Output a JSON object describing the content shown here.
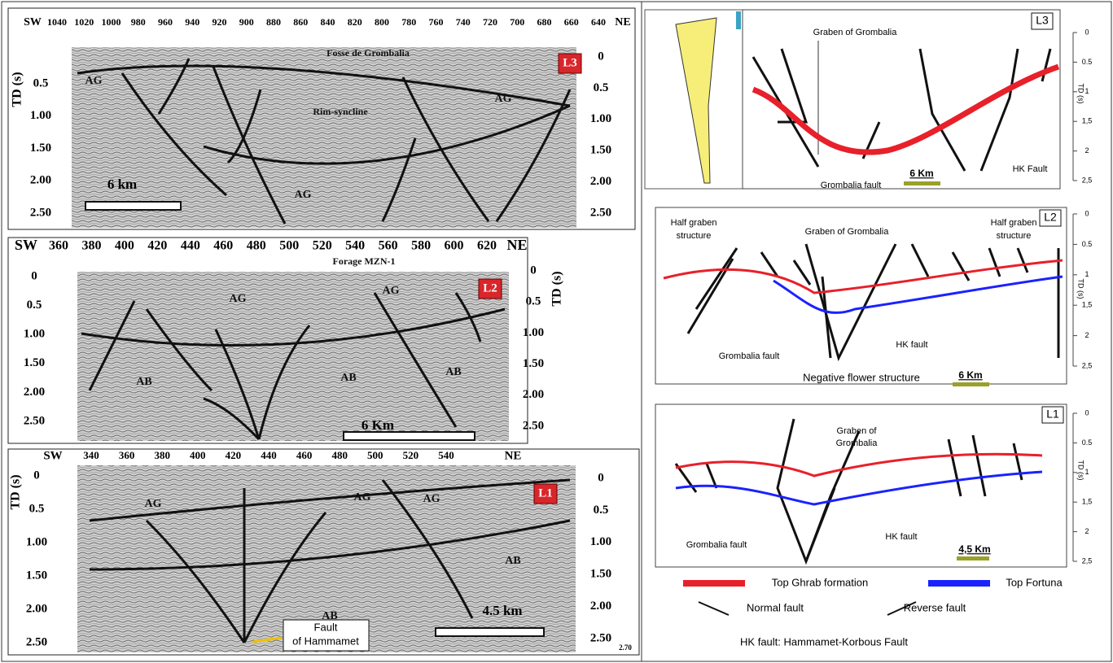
{
  "seismic_sections": [
    {
      "name": "L3",
      "sw": "SW",
      "ne": "NE",
      "td": "TD (s)",
      "x_ticks": [
        "1040",
        "1020",
        "1000",
        "980",
        "960",
        "940",
        "920",
        "900",
        "880",
        "860",
        "840",
        "820",
        "800",
        "780",
        "760",
        "740",
        "720",
        "700",
        "680",
        "660",
        "640"
      ],
      "y_left": [
        "0.5",
        "1.00",
        "1.50",
        "2.00",
        "2.50"
      ],
      "y_right": [
        "0",
        "0.5",
        "1.00",
        "1.50",
        "2.00",
        "2.50"
      ],
      "annotations": [
        "Fosse de Grombalia",
        "Rim-syncline",
        "AG",
        "AG",
        "AG"
      ],
      "scale": "6 km"
    },
    {
      "name": "L2",
      "sw": "SW",
      "ne": "NE",
      "td": "TD (s)",
      "x_ticks": [
        "360",
        "380",
        "400",
        "420",
        "440",
        "460",
        "480",
        "500",
        "520",
        "540",
        "560",
        "580",
        "600",
        "620"
      ],
      "y_left": [
        "0",
        "0.5",
        "1.00",
        "1.50",
        "2.00",
        "2.50"
      ],
      "y_right": [
        "0",
        "0.5",
        "1.00",
        "1.50",
        "2.00",
        "2.50"
      ],
      "annotations": [
        "Forage MZN-1",
        "AG",
        "AG",
        "AB",
        "AB",
        "AB"
      ],
      "scale": "6 Km"
    },
    {
      "name": "L1",
      "sw": "SW",
      "ne": "NE",
      "td": "TD (s)",
      "x_ticks": [
        "340",
        "360",
        "380",
        "400",
        "420",
        "440",
        "460",
        "480",
        "500",
        "520",
        "540"
      ],
      "y_left": [
        "0",
        "0.5",
        "1.00",
        "1.50",
        "2.00",
        "2.50"
      ],
      "y_right": [
        "0",
        "0.5",
        "1.00",
        "1.50",
        "2.00",
        "2.50",
        "2.70"
      ],
      "annotations": [
        "AG",
        "AG",
        "AG",
        "AB",
        "AB"
      ],
      "callout": [
        "Fault",
        "of Hammamet"
      ],
      "scale": "4.5 km"
    }
  ],
  "interpretations": [
    {
      "name": "L3",
      "td": "TD (s)",
      "ticks": [
        "0",
        "0.5",
        "1",
        "1,5",
        "2",
        "2,5"
      ],
      "labels": [
        "Graben of Grombalia",
        "Grombalia fault",
        "HK Fault"
      ],
      "scale": "6 Km"
    },
    {
      "name": "L2",
      "td": "TD (s)",
      "ticks": [
        "0",
        "0.5",
        "1",
        "1,5",
        "2",
        "2,5"
      ],
      "labels": [
        "Half graben",
        "structure",
        "Graben of Grombalia",
        "Half graben",
        "structure",
        "Grombalia fault",
        "HK fault",
        "Negative flower structure"
      ],
      "scale": "6 Km"
    },
    {
      "name": "L1",
      "td": "TD (s)",
      "ticks": [
        "0",
        "0.5",
        "1",
        "1,5",
        "2",
        "2,5"
      ],
      "labels": [
        "Graben of",
        "Grombalia",
        "Grombalia fault",
        "HK fault"
      ],
      "scale": "4,5 Km"
    }
  ],
  "legend": {
    "items": [
      {
        "label": "Top Ghrab formation",
        "color": "#e8202a"
      },
      {
        "label": "Top Fortuna",
        "color": "#1a22ff"
      },
      {
        "label": "Normal fault"
      },
      {
        "label": "Reverse fault"
      }
    ],
    "note": "HK fault: Hammamet-Korbous Fault"
  }
}
